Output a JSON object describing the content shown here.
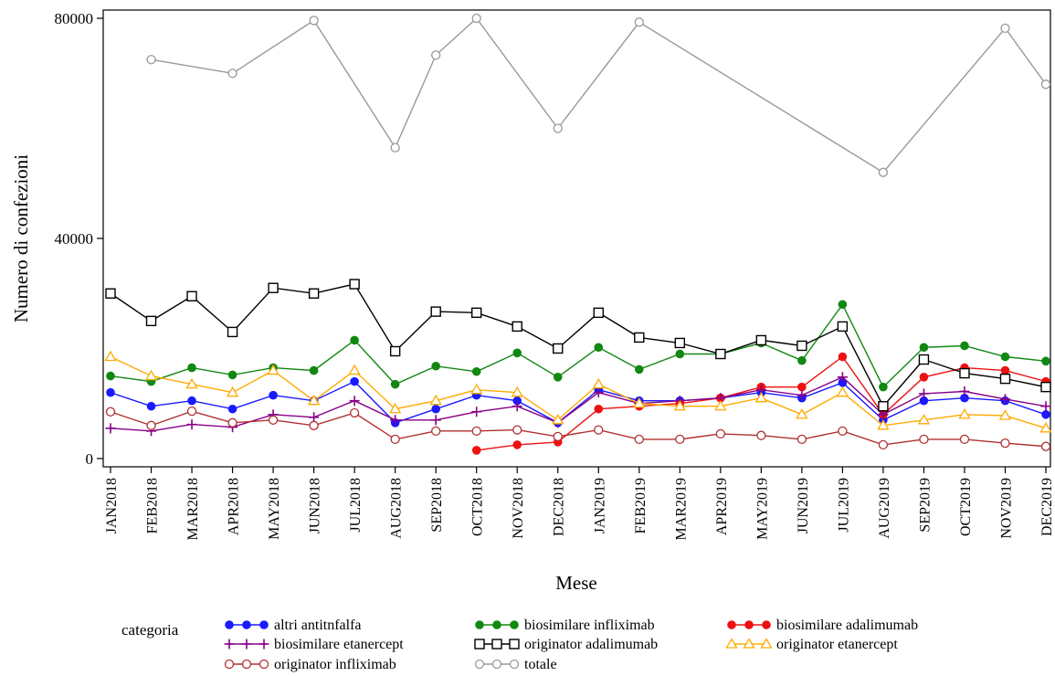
{
  "chart_data": {
    "type": "line",
    "title": "",
    "xlabel": "Mese",
    "ylabel": "Numero di confezioni",
    "ylim": [
      -1500,
      81500
    ],
    "yticks": [
      0,
      40000,
      80000
    ],
    "ytick_labels": [
      "0",
      "40000",
      "80000"
    ],
    "grid": false,
    "legend_title": "categoria",
    "legend_position": "bottom",
    "categories": [
      "JAN2018",
      "FEB2018",
      "MAR2018",
      "APR2018",
      "MAY2018",
      "JUN2018",
      "JUL2018",
      "AUG2018",
      "SEP2018",
      "OCT2018",
      "NOV2018",
      "DEC2018",
      "JAN2019",
      "FEB2019",
      "MAR2019",
      "APR2019",
      "MAY2019",
      "JUN2019",
      "JUL2019",
      "AUG2019",
      "SEP2019",
      "OCT2019",
      "NOV2019",
      "DEC2019"
    ],
    "series": [
      {
        "name": "altri antitnfalfa",
        "color": "#1a1aff",
        "marker": "dot",
        "values": [
          12000,
          9500,
          10500,
          9000,
          11500,
          10500,
          14000,
          6500,
          9000,
          11500,
          10500,
          6500,
          12500,
          10500,
          10500,
          11000,
          12000,
          11000,
          13800,
          7000,
          10500,
          11000,
          10500,
          8000
        ]
      },
      {
        "name": "biosimilare  infliximab",
        "color": "#118811",
        "marker": "dot",
        "values": [
          15000,
          14000,
          16500,
          15200,
          16500,
          16000,
          21500,
          13500,
          16800,
          15800,
          19200,
          14800,
          20200,
          16200,
          19000,
          19000,
          21000,
          17800,
          28000,
          13000,
          20200,
          20500,
          18500,
          17700
        ]
      },
      {
        "name": "biosimilare adalimumab",
        "color": "#ee1111",
        "marker": "dot",
        "values": [
          null,
          null,
          null,
          null,
          null,
          null,
          null,
          null,
          null,
          1500,
          2500,
          3000,
          9000,
          9500,
          10000,
          11000,
          13000,
          13000,
          18500,
          8000,
          14800,
          16500,
          16000,
          14000
        ]
      },
      {
        "name": "biosimilare etanercept",
        "color": "#880088",
        "marker": "plus",
        "values": [
          5500,
          5000,
          6200,
          5700,
          8000,
          7500,
          10500,
          7000,
          7000,
          8500,
          9500,
          6500,
          12000,
          10000,
          10500,
          11000,
          12500,
          11500,
          14800,
          8000,
          11800,
          12200,
          10800,
          9500
        ]
      },
      {
        "name": "originator adalimumab",
        "color": "#000000",
        "marker": "square",
        "values": [
          30000,
          25000,
          29500,
          23000,
          31000,
          30000,
          31700,
          19500,
          26700,
          26500,
          24000,
          20000,
          26500,
          22000,
          21000,
          19000,
          21500,
          20500,
          24000,
          9500,
          18000,
          15500,
          14500,
          13000
        ]
      },
      {
        "name": "originator etanercept",
        "color": "#ffaa00",
        "marker": "triangle",
        "values": [
          18500,
          15000,
          13500,
          12000,
          16000,
          10500,
          16000,
          9000,
          10500,
          12500,
          12000,
          7000,
          13500,
          10000,
          9500,
          9500,
          11000,
          8000,
          12000,
          6000,
          7000,
          8000,
          7800,
          5500
        ]
      },
      {
        "name": "originator infliximab",
        "color": "#b03030",
        "marker": "circle",
        "values": [
          8500,
          6000,
          8600,
          6500,
          7000,
          6000,
          8300,
          3500,
          5000,
          5000,
          5200,
          4000,
          5200,
          3500,
          3500,
          4500,
          4200,
          3500,
          5000,
          2500,
          3500,
          3500,
          2800,
          2200
        ]
      },
      {
        "name": "totale",
        "color": "#999999",
        "marker": "circle",
        "values": [
          null,
          72500,
          null,
          70000,
          null,
          79600,
          null,
          56500,
          73300,
          80000,
          null,
          60000,
          null,
          79300,
          null,
          null,
          null,
          null,
          null,
          52000,
          null,
          null,
          78200,
          68000
        ]
      }
    ]
  }
}
